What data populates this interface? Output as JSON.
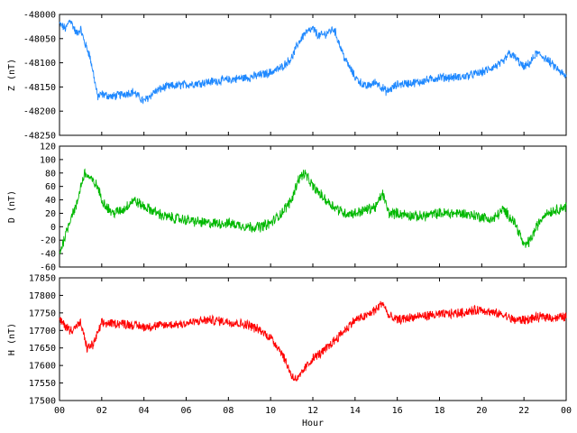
{
  "chart_data": [
    {
      "type": "line",
      "ylabel": "Z (nT)",
      "ylim": [
        -48250,
        -48000
      ],
      "yticks": [
        -48000,
        -48050,
        -48100,
        -48150,
        -48200,
        -48250
      ],
      "xlim": [
        0,
        24
      ],
      "color": "#1e88ff",
      "x": [
        0,
        0.3,
        0.5,
        0.8,
        1.0,
        1.2,
        1.4,
        1.6,
        1.8,
        2.0,
        2.5,
        3.0,
        3.5,
        4.0,
        4.5,
        5.0,
        6.0,
        7.0,
        8.0,
        9.0,
        10.0,
        10.5,
        11.0,
        11.3,
        11.6,
        12.0,
        12.3,
        12.6,
        13.0,
        13.5,
        14.0,
        14.5,
        15.0,
        15.5,
        16.0,
        17.0,
        18.0,
        19.0,
        20.0,
        20.5,
        21.0,
        21.3,
        21.6,
        22.0,
        22.3,
        22.6,
        23.0,
        23.5,
        24.0
      ],
      "y": [
        -48020,
        -48030,
        -48010,
        -48040,
        -48030,
        -48060,
        -48080,
        -48120,
        -48170,
        -48165,
        -48170,
        -48165,
        -48160,
        -48180,
        -48160,
        -48150,
        -48145,
        -48140,
        -48135,
        -48130,
        -48120,
        -48110,
        -48090,
        -48060,
        -48040,
        -48030,
        -48045,
        -48040,
        -48030,
        -48090,
        -48130,
        -48150,
        -48140,
        -48160,
        -48145,
        -48140,
        -48130,
        -48130,
        -48120,
        -48110,
        -48100,
        -48080,
        -48090,
        -48110,
        -48100,
        -48080,
        -48090,
        -48110,
        -48130
      ]
    },
    {
      "type": "line",
      "ylabel": "D (nT)",
      "ylim": [
        -60,
        120
      ],
      "yticks": [
        120,
        100,
        80,
        60,
        40,
        20,
        0,
        -20,
        -40,
        -60
      ],
      "xlim": [
        0,
        24
      ],
      "color": "#00b800",
      "x": [
        0,
        0.2,
        0.4,
        0.6,
        0.8,
        1.0,
        1.2,
        1.5,
        1.8,
        2.0,
        2.5,
        3.0,
        3.5,
        4.0,
        5.0,
        6.0,
        7.0,
        8.0,
        9.0,
        9.5,
        10.0,
        10.5,
        11.0,
        11.3,
        11.6,
        12.0,
        12.3,
        12.6,
        13.0,
        13.5,
        14.0,
        14.5,
        15.0,
        15.3,
        15.6,
        16.0,
        17.0,
        18.0,
        19.0,
        20.0,
        20.5,
        21.0,
        21.5,
        21.8,
        22.0,
        22.3,
        22.6,
        23.0,
        23.5,
        24.0
      ],
      "y": [
        -40,
        -20,
        0,
        20,
        30,
        60,
        80,
        70,
        60,
        40,
        20,
        25,
        40,
        30,
        15,
        10,
        5,
        5,
        0,
        0,
        5,
        20,
        40,
        70,
        80,
        60,
        50,
        40,
        30,
        20,
        20,
        25,
        30,
        50,
        20,
        20,
        15,
        20,
        20,
        15,
        10,
        25,
        10,
        -10,
        -30,
        -20,
        0,
        20,
        25,
        30
      ]
    },
    {
      "type": "line",
      "ylabel": "H (nT)",
      "xlabel": "Hour",
      "ylim": [
        17500,
        17850
      ],
      "yticks": [
        17850,
        17800,
        17750,
        17700,
        17650,
        17600,
        17550,
        17500
      ],
      "xlim": [
        0,
        24
      ],
      "xticks": [
        "00",
        "02",
        "04",
        "06",
        "08",
        "10",
        "12",
        "14",
        "16",
        "18",
        "20",
        "22",
        "00"
      ],
      "color": "#ff0000",
      "x": [
        0,
        0.5,
        1.0,
        1.3,
        1.6,
        2.0,
        3.0,
        4.0,
        5.0,
        6.0,
        7.0,
        8.0,
        9.0,
        9.5,
        10.0,
        10.5,
        10.8,
        11.0,
        11.3,
        11.6,
        12.0,
        12.5,
        13.0,
        13.5,
        14.0,
        14.5,
        15.0,
        15.3,
        15.6,
        16.0,
        17.0,
        18.0,
        19.0,
        20.0,
        20.5,
        21.0,
        21.5,
        22.0,
        22.5,
        23.0,
        23.5,
        24.0
      ],
      "y": [
        17730,
        17700,
        17720,
        17650,
        17660,
        17720,
        17720,
        17710,
        17715,
        17720,
        17730,
        17725,
        17715,
        17700,
        17680,
        17640,
        17600,
        17570,
        17560,
        17590,
        17620,
        17640,
        17670,
        17700,
        17730,
        17740,
        17760,
        17780,
        17740,
        17730,
        17740,
        17745,
        17750,
        17760,
        17750,
        17745,
        17730,
        17730,
        17735,
        17740,
        17735,
        17740
      ]
    }
  ]
}
